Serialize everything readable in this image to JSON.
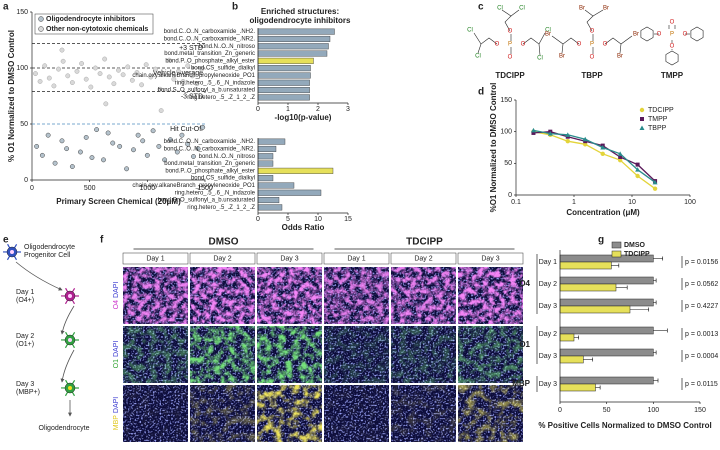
{
  "panel_labels": [
    "a",
    "b",
    "c",
    "d",
    "e",
    "f",
    "g"
  ],
  "chart_data": [
    {
      "type": "scatter",
      "xlabel": "Primary Screen Chemical (20μM)",
      "ylabel": "% O1 Normalized to DMSO Control",
      "xlim": [
        0,
        1500
      ],
      "xticks": [
        0,
        500,
        1000,
        1500
      ],
      "ylim": [
        0,
        150
      ],
      "yticks": [
        0,
        50,
        100,
        150
      ],
      "series": [
        {
          "name": "Oligodendrocyte inhibitors",
          "color": "#b4c2cc",
          "x": [
            40,
            90,
            140,
            200,
            260,
            300,
            350,
            420,
            470,
            520,
            560,
            620,
            660,
            700,
            760,
            820,
            880,
            920,
            960,
            1000,
            1050,
            1100,
            1150,
            1200,
            1260,
            1300,
            1350,
            1400,
            1440,
            1480
          ],
          "values": [
            30,
            22,
            40,
            15,
            35,
            28,
            12,
            25,
            38,
            20,
            45,
            18,
            42,
            33,
            30,
            10,
            27,
            40,
            35,
            22,
            44,
            30,
            18,
            36,
            25,
            40,
            32,
            21,
            28,
            47
          ]
        },
        {
          "name": "Other non-cytotoxic chemicals",
          "color": "#d9d9d9",
          "x": [
            30,
            70,
            110,
            150,
            190,
            230,
            270,
            310,
            350,
            390,
            430,
            470,
            510,
            550,
            590,
            630,
            670,
            710,
            750,
            790,
            830,
            870,
            910,
            950,
            990,
            1030,
            1070,
            1110,
            1150,
            1190,
            1230,
            1270,
            1310,
            1350,
            1390,
            1430,
            1470,
            260,
            640,
            1120
          ],
          "values": [
            95,
            88,
            102,
            91,
            84,
            99,
            106,
            93,
            87,
            97,
            104,
            90,
            83,
            100,
            95,
            108,
            92,
            86,
            98,
            94,
            101,
            89,
            96,
            85,
            103,
            92,
            99,
            81,
            95,
            107,
            90,
            97,
            88,
            102,
            93,
            86,
            99,
            116,
            68,
            62
          ]
        }
      ],
      "reference_lines": [
        {
          "label": "+3 STD",
          "value": 122,
          "color": "#222"
        },
        {
          "label": "Vehicle Average",
          "value": 100,
          "color": "#222"
        },
        {
          "label": "-3 STD",
          "value": 79,
          "color": "#222"
        },
        {
          "label": "Hit Cut-Off",
          "value": 50,
          "color": "#4f8fc0"
        }
      ]
    },
    {
      "type": "bar",
      "orientation": "horizontal",
      "title": "Enriched structures:",
      "subtitle": "oligodendrocyte inhibitors",
      "categories": [
        "bond.C..O..N_carboxamide_.NH2.",
        "bond.C..O..N_carboxamide_.NR2.",
        "bond.N..O..N_nitroso",
        "bond.metal_transition_Zn_generic",
        "bond.P..O_phosphate_alkyl_ester",
        "bond.CS_sulfide_dialkyl",
        "chain.oxy.alkaneBranch_propyleneoxide_PO1",
        "ring.hetero_.5_.6_.N_indazole",
        "bond.S..O_sulfonyl_a_b.unsaturated",
        "ring.hetero_.5_.Z_1_2_.Z"
      ],
      "values": [
        2.55,
        2.4,
        2.35,
        2.3,
        1.85,
        1.75,
        1.75,
        1.72,
        1.72,
        1.72
      ],
      "colors": [
        "#93a9bb",
        "#93a9bb",
        "#93a9bb",
        "#93a9bb",
        "#e6e05a",
        "#93a9bb",
        "#93a9bb",
        "#93a9bb",
        "#93a9bb",
        "#93a9bb"
      ],
      "xlim": [
        0,
        3
      ],
      "xticks": [
        0,
        1,
        2,
        3
      ],
      "xlabel": "-log10(p-value)"
    },
    {
      "type": "bar",
      "orientation": "horizontal",
      "categories": [
        "bond.C..O..N_carboxamide_.NH2.",
        "bond.C..O..N_carboxamide_.NR2.",
        "bond.N..O..N_nitroso",
        "bond.metal_transition_Zn_generic",
        "bond.P..O_phosphate_alkyl_ester",
        "bond.CS_sulfide_dialkyl",
        "chain.oxy.alkaneBranch_propyleneoxide_PO1",
        "ring.hetero_.5_.6_.N_indazole",
        "bond.S..O_sulfonyl_a_b.unsaturated",
        "ring.hetero_.5_.Z_1_2_.Z"
      ],
      "values": [
        4.5,
        3,
        2.5,
        2.5,
        12.5,
        2.5,
        6,
        10.5,
        3.5,
        4
      ],
      "colors": [
        "#93a9bb",
        "#93a9bb",
        "#93a9bb",
        "#93a9bb",
        "#e6e05a",
        "#93a9bb",
        "#93a9bb",
        "#93a9bb",
        "#93a9bb",
        "#93a9bb"
      ],
      "xlim": [
        0,
        15
      ],
      "xticks": [
        0,
        5,
        10,
        15
      ],
      "xlabel": "Odds Ratio"
    },
    {
      "type": "line",
      "xlabel": "Concentration (μM)",
      "ylabel": "%O1 Normalized to DMSO Control",
      "log_x": true,
      "xlim": [
        0.1,
        100
      ],
      "xticks": [
        0.1,
        1,
        10,
        100
      ],
      "ylim": [
        0,
        150
      ],
      "yticks": [
        0,
        50,
        100,
        150
      ],
      "x": [
        0.2,
        0.39,
        0.78,
        1.56,
        3.13,
        6.25,
        12.5,
        25
      ],
      "series": [
        {
          "name": "TDCIPP",
          "color": "#e3d43a",
          "marker": "circle",
          "values": [
            100,
            95,
            85,
            80,
            65,
            55,
            30,
            10
          ]
        },
        {
          "name": "TMPP",
          "color": "#5a1a5a",
          "marker": "square",
          "values": [
            98,
            100,
            92,
            85,
            78,
            60,
            48,
            22
          ]
        },
        {
          "name": "TBPP",
          "color": "#2a8c8c",
          "marker": "triangle",
          "values": [
            102,
            97,
            95,
            88,
            75,
            65,
            40,
            20
          ]
        }
      ]
    },
    {
      "type": "bar",
      "orientation": "horizontal",
      "xlabel": "% Positive Cells Normalized to DMSO Control",
      "xlim": [
        0,
        150
      ],
      "xticks": [
        0,
        50,
        100,
        150
      ],
      "groups": [
        {
          "label": "O4",
          "categories": [
            "Day 1",
            "Day 2",
            "Day 3"
          ]
        },
        {
          "label": "O1",
          "categories": [
            "Day 2",
            "Day 3"
          ]
        },
        {
          "label": "MBP",
          "categories": [
            "Day 3"
          ]
        }
      ],
      "series": [
        {
          "name": "DMSO",
          "color": "#8c8c8c",
          "values": [
            100,
            100,
            100,
            100,
            100,
            100
          ],
          "errors": [
            10,
            3,
            3,
            15,
            3,
            5
          ]
        },
        {
          "name": "TDCIPP",
          "color": "#e6e05a",
          "values": [
            55,
            60,
            75,
            15,
            25,
            38
          ],
          "errors": [
            8,
            12,
            20,
            5,
            10,
            5
          ]
        }
      ],
      "p_values": [
        "p = 0.0156",
        "p = 0.0562",
        "p = 0.4227",
        "p = 0.0013",
        "p = 0.0004",
        "p = 0.0115"
      ]
    }
  ],
  "structures": [
    {
      "name": "TDCIPP",
      "atoms": [
        "Cl",
        "Cl",
        "Cl",
        "Cl",
        "Cl",
        "Cl",
        "O",
        "O",
        "O",
        "O",
        "P"
      ]
    },
    {
      "name": "TBPP",
      "atoms": [
        "Br",
        "Br",
        "Br",
        "Br",
        "Br",
        "Br",
        "O",
        "O",
        "O",
        "O",
        "P"
      ]
    },
    {
      "name": "TMPP",
      "atoms": [
        "O",
        "O",
        "O",
        "O",
        "P"
      ]
    }
  ],
  "diagram": {
    "nodes": [
      {
        "lines": [
          "Oligodendrocyte",
          "Progenitor Cell"
        ]
      },
      {
        "lines": [
          "Day 1",
          "(O4+)"
        ]
      },
      {
        "lines": [
          "Day 2",
          "(O1+)"
        ]
      },
      {
        "lines": [
          "Day 3",
          "(MBP+)"
        ]
      },
      {
        "lines": [
          "Oligodendrocyte"
        ]
      }
    ]
  },
  "micrographs": {
    "conditions": [
      "DMSO",
      "TDCIPP"
    ],
    "days": [
      "Day 1",
      "Day 2",
      "Day 3"
    ],
    "stains": [
      {
        "marker": "O4",
        "color": "#cc33cc"
      },
      {
        "marker": "O1",
        "color": "#2ca02c"
      },
      {
        "marker": "MBP",
        "color": "#e0c820"
      }
    ],
    "counterstain": "DAPI"
  }
}
